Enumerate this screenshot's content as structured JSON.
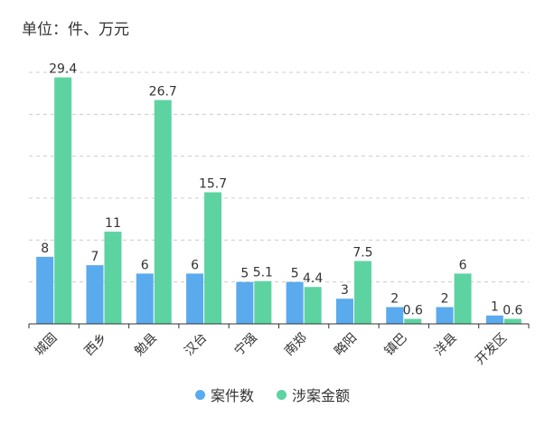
{
  "unit_label": "单位：件、万元",
  "chart_data": {
    "type": "bar",
    "categories": [
      "城固",
      "西乡",
      "勉县",
      "汉台",
      "宁强",
      "南郑",
      "略阳",
      "镇巴",
      "洋县",
      "开发区"
    ],
    "series": [
      {
        "name": "案件数",
        "values": [
          8,
          7,
          6,
          6,
          5,
          5,
          3,
          2,
          2,
          1
        ],
        "labels": [
          "8",
          "7",
          "6",
          "6",
          "5",
          "5",
          "3",
          "2",
          "2",
          "1"
        ],
        "color": "#5aaaee"
      },
      {
        "name": "涉案金额",
        "values": [
          29.4,
          11,
          26.7,
          15.7,
          5.1,
          4.4,
          7.5,
          0.6,
          6,
          0.6
        ],
        "labels": [
          "29.4",
          "11",
          "26.7",
          "15.7",
          "5.1",
          "4.4",
          "7.5",
          "0.6",
          "6",
          "0.6"
        ],
        "color": "#5dd3a2"
      }
    ],
    "ylim": [
      0,
      30
    ],
    "grid": true,
    "legend_position": "bottom-center"
  }
}
